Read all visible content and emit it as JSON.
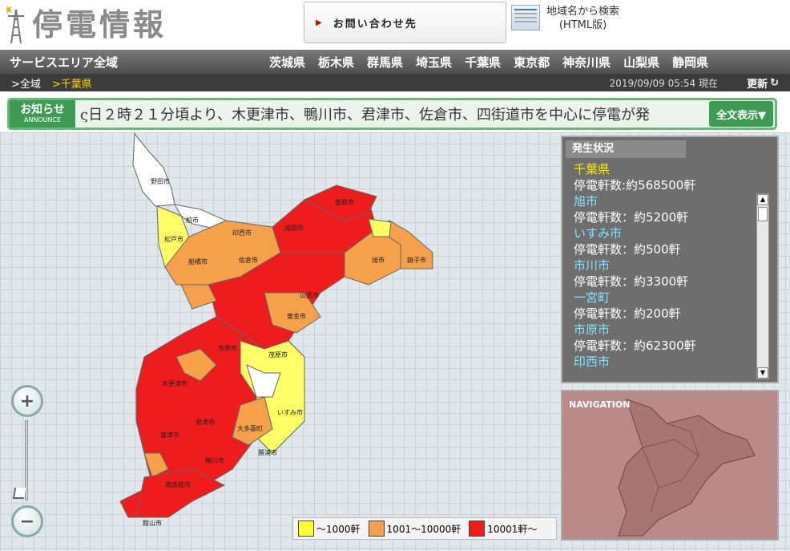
{
  "header": {
    "logo_text": "停電情報",
    "contact_label": "お問い合わせ先",
    "search_line1": "地域名から検索",
    "search_line2": "(HTML版)"
  },
  "navbar": {
    "service_area": "サービスエリア全域",
    "prefectures": [
      "茨城県",
      "栃木県",
      "群馬県",
      "埼玉県",
      "千葉県",
      "東京都",
      "神奈川県",
      "山梨県",
      "静岡県"
    ]
  },
  "breadcrumb": {
    "all": ">全域",
    "current": ">千葉県",
    "time": "2019/09/09 05:54 現在",
    "refresh": "更新"
  },
  "announce": {
    "label_jp": "お知らせ",
    "label_en": "ANNOUNCE",
    "message": "ς日２時２１分頃より、木更津市、鴨川市、君津市、佐倉市、四街道市を中心に停電が発",
    "full_button": "全文表示▼"
  },
  "status": {
    "title": "発生状況",
    "prefecture": "千葉県",
    "prefecture_count": "停電軒数:約568500軒",
    "items": [
      {
        "name": "旭市",
        "count": "停電軒数：約5200軒"
      },
      {
        "name": "いすみ市",
        "count": "停電軒数：約500軒"
      },
      {
        "name": "市川市",
        "count": "停電軒数：約3300軒"
      },
      {
        "name": "一宮町",
        "count": "停電軒数：約200軒"
      },
      {
        "name": "市原市",
        "count": "停電軒数：約62300軒"
      },
      {
        "name": "印西市",
        "count": ""
      }
    ]
  },
  "navigation": {
    "title": "NAVIGATION"
  },
  "zoom": {
    "plus": "+",
    "minus": "−"
  },
  "legend": {
    "items": [
      {
        "label": "～1000軒",
        "color": "#ffff33"
      },
      {
        "label": "1001～10000軒",
        "color": "#f5a04a"
      },
      {
        "label": "10001軒～",
        "color": "#ee1c1c"
      }
    ]
  },
  "map_labels": {
    "noda": "野田市",
    "kashiwa": "柏市",
    "matsudo": "松戸市",
    "funabashi": "船橋市",
    "inzai": "印西市",
    "narita": "成田市",
    "katori": "香取市",
    "asahi": "旭市",
    "choshi": "銚子市",
    "sakura": "佐倉市",
    "sammu": "山武市",
    "togane": "東金市",
    "ichihara": "市原市",
    "mobara": "茂原市",
    "isumi": "いすみ市",
    "kisarazu": "木更津市",
    "kimitsu": "君津市",
    "futtsu": "富津市",
    "otaki": "大多喜町",
    "katsuura": "勝浦市",
    "kamogawa": "鴨川市",
    "minamiboso": "南房総市",
    "tateyama": "館山市"
  }
}
